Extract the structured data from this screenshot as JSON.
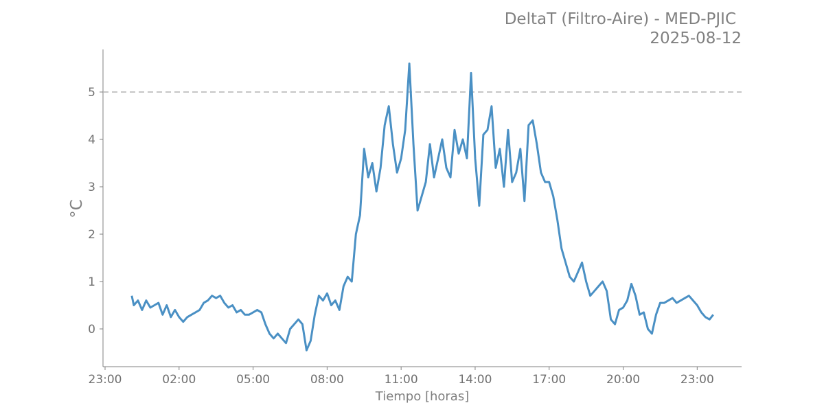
{
  "chart_data": {
    "type": "line",
    "title": "DeltaT (Filtro-Aire) - MED-PJIC",
    "subtitle": "2025-08-12",
    "xlabel": "Tiempo [horas]",
    "ylabel": "°C",
    "x_ticks": [
      "23:00",
      "02:00",
      "05:00",
      "08:00",
      "11:00",
      "14:00",
      "17:00",
      "20:00",
      "23:00"
    ],
    "y_ticks": [
      0,
      1,
      2,
      3,
      4,
      5
    ],
    "ylim": [
      -0.8,
      5.9
    ],
    "grid": false,
    "threshold": {
      "value": 5,
      "style": "dashed",
      "color": "#b3b3b3"
    },
    "line_color": "#4a90c4",
    "series": [
      {
        "x": [
          "00:05",
          "00:10",
          "00:20",
          "00:30",
          "00:40",
          "00:50",
          "01:00",
          "01:10",
          "01:20",
          "01:30",
          "01:40",
          "01:50",
          "02:00",
          "02:10",
          "02:20",
          "02:30",
          "02:40",
          "02:50",
          "03:00",
          "03:10",
          "03:20",
          "03:30",
          "03:40",
          "03:50",
          "04:00",
          "04:10",
          "04:20",
          "04:30",
          "04:40",
          "04:50",
          "05:00",
          "05:10",
          "05:20",
          "05:30",
          "05:40",
          "05:50",
          "06:00",
          "06:10",
          "06:20",
          "06:30",
          "06:40",
          "06:50",
          "07:00",
          "07:10",
          "07:20",
          "07:30",
          "07:40",
          "07:50",
          "08:00",
          "08:10",
          "08:20",
          "08:30",
          "08:40",
          "08:50",
          "09:00",
          "09:10",
          "09:20",
          "09:30",
          "09:40",
          "09:50",
          "10:00",
          "10:10",
          "10:20",
          "10:30",
          "10:40",
          "10:50",
          "11:00",
          "11:10",
          "11:20",
          "11:30",
          "11:40",
          "11:50",
          "12:00",
          "12:10",
          "12:20",
          "12:30",
          "12:40",
          "12:50",
          "13:00",
          "13:10",
          "13:20",
          "13:30",
          "13:40",
          "13:50",
          "14:00",
          "14:10",
          "14:20",
          "14:30",
          "14:40",
          "14:50",
          "15:00",
          "15:10",
          "15:20",
          "15:30",
          "15:40",
          "15:50",
          "16:00",
          "16:10",
          "16:20",
          "16:30",
          "16:40",
          "16:50",
          "17:00",
          "17:10",
          "17:20",
          "17:30",
          "17:40",
          "17:50",
          "18:00",
          "18:10",
          "18:20",
          "18:30",
          "18:40",
          "18:50",
          "19:00",
          "19:10",
          "19:20",
          "19:30",
          "19:40",
          "19:50",
          "20:00",
          "20:10",
          "20:20",
          "20:30",
          "20:40",
          "20:50",
          "21:00",
          "21:10",
          "21:20",
          "21:30",
          "21:40",
          "21:50",
          "22:00",
          "22:10",
          "22:20",
          "22:30",
          "22:40",
          "22:50",
          "23:00",
          "23:10",
          "23:20",
          "23:30",
          "23:39"
        ],
        "y": [
          0.7,
          0.5,
          0.6,
          0.4,
          0.6,
          0.45,
          0.5,
          0.55,
          0.3,
          0.5,
          0.25,
          0.4,
          0.25,
          0.15,
          0.25,
          0.3,
          0.35,
          0.4,
          0.55,
          0.6,
          0.7,
          0.65,
          0.7,
          0.55,
          0.45,
          0.5,
          0.35,
          0.4,
          0.3,
          0.3,
          0.35,
          0.4,
          0.35,
          0.1,
          -0.1,
          -0.2,
          -0.1,
          -0.2,
          -0.3,
          0.0,
          0.1,
          0.2,
          0.1,
          -0.45,
          -0.25,
          0.3,
          0.7,
          0.6,
          0.75,
          0.5,
          0.6,
          0.4,
          0.9,
          1.1,
          1.0,
          2.0,
          2.4,
          3.8,
          3.2,
          3.5,
          2.9,
          3.4,
          4.3,
          4.7,
          3.9,
          3.3,
          3.6,
          4.2,
          5.6,
          3.9,
          2.5,
          2.8,
          3.1,
          3.9,
          3.2,
          3.6,
          4.0,
          3.4,
          3.2,
          4.2,
          3.7,
          4.0,
          3.6,
          5.4,
          3.6,
          2.6,
          4.1,
          4.2,
          4.7,
          3.4,
          3.8,
          3.0,
          4.2,
          3.1,
          3.3,
          3.8,
          2.7,
          4.3,
          4.4,
          3.9,
          3.3,
          3.1,
          3.1,
          2.8,
          2.3,
          1.7,
          1.4,
          1.1,
          1.0,
          1.2,
          1.4,
          1.0,
          0.7,
          0.8,
          0.9,
          1.0,
          0.8,
          0.2,
          0.1,
          0.4,
          0.45,
          0.6,
          0.95,
          0.7,
          0.3,
          0.35,
          0.0,
          -0.1,
          0.3,
          0.55,
          0.55,
          0.6,
          0.65,
          0.55,
          0.6,
          0.65,
          0.7,
          0.6,
          0.5,
          0.35,
          0.25,
          0.2,
          0.3
        ]
      }
    ]
  }
}
